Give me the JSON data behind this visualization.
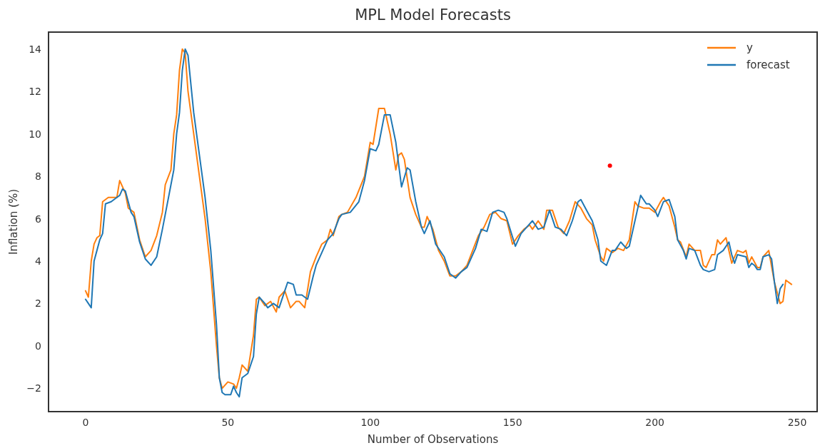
{
  "chart_data": {
    "type": "line",
    "title": "MPL Model Forecasts",
    "xlabel": "Number of Observations",
    "ylabel": "Inflation (%)",
    "xlim": [
      -13,
      257
    ],
    "ylim": [
      -3.1,
      14.8
    ],
    "xticks": [
      0,
      50,
      100,
      150,
      200,
      250
    ],
    "yticks": [
      -2,
      0,
      2,
      4,
      6,
      8,
      10,
      12,
      14
    ],
    "grid": false,
    "legend": "top right",
    "series": [
      {
        "name": "y",
        "color": "#ff7f0e",
        "x": [
          0,
          1,
          2,
          3,
          4,
          5,
          6,
          8,
          11,
          12,
          14,
          15,
          17,
          19,
          21,
          23,
          25,
          27,
          28,
          30,
          31,
          32,
          33,
          34,
          35,
          36,
          38,
          40,
          42,
          44,
          46,
          47,
          48,
          50,
          52,
          53,
          54,
          55,
          57,
          59,
          60,
          61,
          63,
          65,
          67,
          68,
          70,
          72,
          74,
          75,
          77,
          79,
          81,
          83,
          85,
          86,
          87,
          89,
          90,
          92,
          95,
          98,
          100,
          101,
          103,
          105,
          107,
          109,
          110,
          111,
          112,
          114,
          116,
          118,
          119,
          120,
          122,
          124,
          126,
          128,
          130,
          132,
          134,
          136,
          138,
          140,
          142,
          144,
          146,
          148,
          150,
          152,
          154,
          156,
          157,
          159,
          161,
          162,
          164,
          166,
          168,
          170,
          172,
          174,
          176,
          178,
          179,
          181,
          182,
          183,
          185,
          187,
          189,
          191,
          193,
          194,
          196,
          198,
          200,
          202,
          203,
          205,
          207,
          208,
          209,
          211,
          212,
          214,
          216,
          217,
          218,
          220,
          221,
          222,
          223,
          225,
          227,
          229,
          231,
          232,
          233,
          234,
          236,
          237,
          238,
          240,
          242,
          244,
          245,
          246,
          248
        ],
        "values": [
          2.6,
          2.3,
          4.0,
          4.8,
          5.1,
          5.2,
          6.8,
          7.0,
          7.0,
          7.8,
          7.2,
          6.5,
          6.3,
          5.0,
          4.2,
          4.5,
          5.2,
          6.3,
          7.6,
          8.3,
          10.0,
          10.9,
          13.0,
          14.0,
          13.8,
          12.0,
          10.0,
          8.0,
          6.0,
          3.5,
          0.0,
          -1.5,
          -2.0,
          -1.7,
          -1.8,
          -2.0,
          -1.5,
          -0.9,
          -1.2,
          0.5,
          2.2,
          2.3,
          1.9,
          2.1,
          1.6,
          2.3,
          2.6,
          1.8,
          2.1,
          2.1,
          1.8,
          3.5,
          4.2,
          4.8,
          5.0,
          5.5,
          5.2,
          6.1,
          6.2,
          6.3,
          7.0,
          8.0,
          9.6,
          9.5,
          11.2,
          11.2,
          10.0,
          8.3,
          9.0,
          9.1,
          8.8,
          7.0,
          6.2,
          5.6,
          5.6,
          6.1,
          5.5,
          4.5,
          4.0,
          3.3,
          3.3,
          3.5,
          3.8,
          4.5,
          5.2,
          5.6,
          6.2,
          6.3,
          6.0,
          5.9,
          4.8,
          5.2,
          5.5,
          5.7,
          5.5,
          5.9,
          5.5,
          6.4,
          6.4,
          5.6,
          5.3,
          5.9,
          6.8,
          6.5,
          6.0,
          5.7,
          5.0,
          4.2,
          4.0,
          4.6,
          4.4,
          4.6,
          4.5,
          5.0,
          6.8,
          6.6,
          6.5,
          6.5,
          6.3,
          6.8,
          7.0,
          6.6,
          5.6,
          5.0,
          4.9,
          4.2,
          4.8,
          4.5,
          4.5,
          3.8,
          3.7,
          4.3,
          4.3,
          5.0,
          4.8,
          5.1,
          3.9,
          4.5,
          4.4,
          4.5,
          3.9,
          4.2,
          3.7,
          3.7,
          4.2,
          4.5,
          3.0,
          2.0,
          2.1,
          3.1,
          2.9
        ]
      },
      {
        "name": "forecast",
        "color": "#1f77b4",
        "x": [
          0,
          1,
          2,
          3,
          4,
          5,
          6,
          7,
          9,
          11,
          12,
          13,
          14,
          16,
          17,
          19,
          21,
          23,
          25,
          27,
          28,
          30,
          31,
          32,
          33,
          34,
          35,
          36,
          38,
          40,
          42,
          44,
          46,
          47,
          48,
          49,
          51,
          52,
          53,
          54,
          55,
          57,
          59,
          60,
          61,
          63,
          64,
          66,
          68,
          70,
          71,
          73,
          74,
          76,
          78,
          80,
          81,
          83,
          85,
          87,
          89,
          90,
          93,
          96,
          98,
          100,
          102,
          103,
          105,
          107,
          109,
          111,
          113,
          114,
          116,
          118,
          119,
          121,
          123,
          126,
          128,
          130,
          132,
          134,
          137,
          139,
          141,
          143,
          145,
          147,
          148,
          151,
          153,
          155,
          157,
          159,
          161,
          163,
          165,
          167,
          169,
          171,
          173,
          174,
          176,
          178,
          180,
          181,
          183,
          185,
          186,
          188,
          190,
          191,
          193,
          195,
          197,
          198,
          200,
          201,
          203,
          205,
          207,
          208,
          210,
          211,
          212,
          214,
          216,
          217,
          219,
          221,
          222,
          224,
          226,
          227,
          228,
          229,
          232,
          233,
          234,
          235,
          236,
          237,
          238,
          240,
          241,
          242,
          243,
          244,
          245
        ],
        "values": [
          2.2,
          2.0,
          1.8,
          4.0,
          4.5,
          5.0,
          5.3,
          6.7,
          6.8,
          7.0,
          7.1,
          7.4,
          7.3,
          6.3,
          6.1,
          4.9,
          4.1,
          3.8,
          4.2,
          5.5,
          6.2,
          7.6,
          8.3,
          10.0,
          11.0,
          13.0,
          14.0,
          13.7,
          11.0,
          9.0,
          7.0,
          4.5,
          1.0,
          -1.5,
          -2.2,
          -2.3,
          -2.3,
          -1.9,
          -2.2,
          -2.4,
          -1.5,
          -1.3,
          -0.5,
          1.5,
          2.3,
          2.0,
          1.8,
          2.0,
          1.8,
          2.6,
          3.0,
          2.9,
          2.4,
          2.4,
          2.2,
          3.3,
          3.8,
          4.4,
          5.0,
          5.3,
          6.0,
          6.2,
          6.3,
          6.8,
          7.8,
          9.3,
          9.2,
          9.5,
          10.9,
          10.9,
          9.6,
          7.5,
          8.4,
          8.3,
          6.8,
          5.6,
          5.3,
          5.9,
          4.8,
          4.2,
          3.4,
          3.2,
          3.5,
          3.7,
          4.6,
          5.5,
          5.4,
          6.3,
          6.4,
          6.3,
          6.0,
          4.7,
          5.3,
          5.6,
          5.9,
          5.5,
          5.6,
          6.4,
          5.6,
          5.5,
          5.2,
          5.9,
          6.8,
          6.9,
          6.4,
          5.9,
          5.0,
          4.0,
          3.8,
          4.5,
          4.5,
          4.9,
          4.6,
          4.7,
          5.9,
          7.1,
          6.7,
          6.7,
          6.4,
          6.1,
          6.8,
          6.9,
          6.1,
          5.0,
          4.5,
          4.1,
          4.6,
          4.5,
          3.8,
          3.6,
          3.5,
          3.6,
          4.3,
          4.5,
          4.9,
          4.3,
          3.9,
          4.3,
          4.2,
          3.7,
          3.9,
          3.8,
          3.6,
          3.6,
          4.2,
          4.3,
          4.1,
          3.0,
          2.0,
          2.7,
          2.9
        ]
      },
      {
        "type": "scatter",
        "color": "#ff0000",
        "marker": "circle",
        "x": [
          184.2
        ],
        "values": [
          8.5
        ]
      }
    ]
  }
}
